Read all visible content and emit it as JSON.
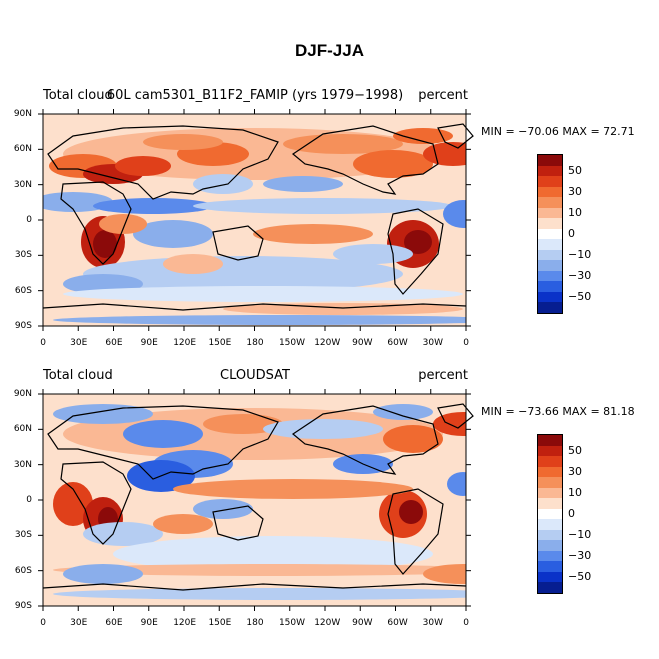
{
  "title": "DJF-JJA",
  "panels": [
    {
      "left_label": "Total cloud",
      "center_label": "60L cam5301_B11F2_FAMIP (yrs 1979−1998)",
      "right_label": "percent",
      "min_label": "MIN = −70.06",
      "max_label": "MAX =   72.71"
    },
    {
      "left_label": "Total cloud",
      "center_label": "CLOUDSAT",
      "right_label": "percent",
      "min_label": "MIN = −73.66",
      "max_label": "MAX =   81.18"
    }
  ],
  "axes": {
    "y_ticks": [
      "90N",
      "60N",
      "30N",
      "0",
      "30S",
      "60S",
      "90S"
    ],
    "x_ticks": [
      "0",
      "30E",
      "60E",
      "90E",
      "120E",
      "150E",
      "180",
      "150W",
      "120W",
      "90W",
      "60W",
      "30W",
      "0"
    ]
  },
  "colorbar": {
    "labels": [
      "50",
      "30",
      "10",
      "0",
      "−10",
      "−30",
      "−50"
    ],
    "colors": [
      "#8b0a0a",
      "#c0200f",
      "#e0401a",
      "#f06a30",
      "#f5905a",
      "#fab894",
      "#fde0cc",
      "#ffffff",
      "#dbe8fa",
      "#b5cdf2",
      "#8aaeeb",
      "#5a8aeb",
      "#2a5ee0",
      "#0a32c8",
      "#061e90"
    ]
  }
}
